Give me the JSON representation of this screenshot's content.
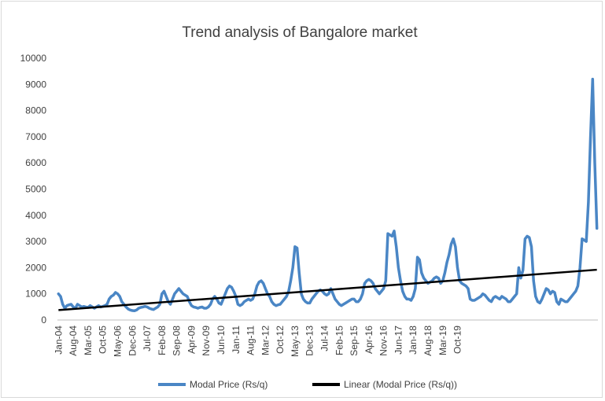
{
  "chart_data": {
    "type": "line",
    "title": "Trend analysis of Bangalore market",
    "xlabel": "",
    "ylabel": "",
    "ylim": [
      0,
      10000
    ],
    "y_ticks": [
      "0",
      "1000",
      "2000",
      "3000",
      "4000",
      "5000",
      "6000",
      "7000",
      "8000",
      "9000",
      "10000"
    ],
    "x_tick_labels": [
      "Jan-04",
      "Aug-04",
      "Mar-05",
      "Oct-05",
      "May-06",
      "Dec-06",
      "Jul-07",
      "Feb-08",
      "Sep-08",
      "Apr-09",
      "Nov-09",
      "Jun-10",
      "Jan-11",
      "Aug-11",
      "Mar-12",
      "Oct-12",
      "May-13",
      "Dec-13",
      "Jul-14",
      "Feb-15",
      "Sep-15",
      "Apr-16",
      "Nov-16",
      "Jun-17",
      "Jan-18",
      "Aug-18",
      "Mar-19",
      "Oct-19"
    ],
    "x_range": [
      "Jan-04",
      "Dec-19"
    ],
    "legend_position": "bottom",
    "grid": false,
    "series": [
      {
        "name": "Modal Price (Rs/q)",
        "color": "#4a86c5",
        "start": "Jan-04",
        "values": [
          1000,
          900,
          600,
          450,
          550,
          580,
          600,
          500,
          450,
          600,
          550,
          500,
          520,
          500,
          480,
          550,
          500,
          450,
          500,
          550,
          500,
          520,
          550,
          600,
          800,
          900,
          950,
          1050,
          1000,
          900,
          700,
          600,
          500,
          420,
          380,
          360,
          350,
          380,
          450,
          480,
          500,
          520,
          500,
          450,
          420,
          400,
          450,
          500,
          600,
          1000,
          1100,
          900,
          700,
          600,
          800,
          1000,
          1100,
          1200,
          1100,
          1000,
          950,
          900,
          700,
          550,
          500,
          480,
          450,
          480,
          500,
          450,
          450,
          500,
          600,
          800,
          900,
          800,
          650,
          600,
          800,
          1000,
          1200,
          1300,
          1250,
          1100,
          900,
          600,
          550,
          600,
          700,
          750,
          800,
          750,
          800,
          1000,
          1300,
          1450,
          1500,
          1400,
          1200,
          1000,
          900,
          700,
          600,
          550,
          580,
          600,
          700,
          800,
          900,
          1100,
          1500,
          2000,
          2800,
          2750,
          1800,
          1000,
          800,
          700,
          650,
          650,
          800,
          900,
          1000,
          1100,
          1150,
          1100,
          1000,
          950,
          1000,
          1200,
          1000,
          800,
          700,
          600,
          550,
          600,
          650,
          700,
          750,
          800,
          800,
          700,
          700,
          800,
          1000,
          1400,
          1500,
          1550,
          1500,
          1400,
          1200,
          1100,
          1000,
          1100,
          1200,
          1500,
          3300,
          3250,
          3200,
          3400,
          2800,
          2000,
          1500,
          1100,
          900,
          800,
          800,
          750,
          900,
          1200,
          2400,
          2300,
          1800,
          1600,
          1500,
          1400,
          1450,
          1500,
          1600,
          1650,
          1600,
          1400,
          1500,
          1800,
          2200,
          2500,
          2900,
          3100,
          2800,
          2000,
          1500,
          1400,
          1350,
          1300,
          1200,
          800,
          750,
          750,
          800,
          850,
          900,
          1000,
          950,
          850,
          750,
          700,
          850,
          900,
          850,
          800,
          900,
          850,
          800,
          700,
          700,
          800,
          900,
          1000,
          2000,
          1600,
          1900,
          3100,
          3200,
          3150,
          2800,
          1500,
          900,
          700,
          650,
          800,
          1000,
          1200,
          1150,
          1000,
          1100,
          1050,
          700,
          600,
          800,
          750,
          700,
          700,
          800,
          900,
          1000,
          1100,
          1300,
          2000,
          3100,
          3050,
          3000,
          4500,
          7000,
          9200,
          6000,
          3500
        ]
      },
      {
        "name": "Linear (Modal Price (Rs/q))",
        "color": "#000000",
        "start_value": 380,
        "end_value": 1920
      }
    ]
  }
}
